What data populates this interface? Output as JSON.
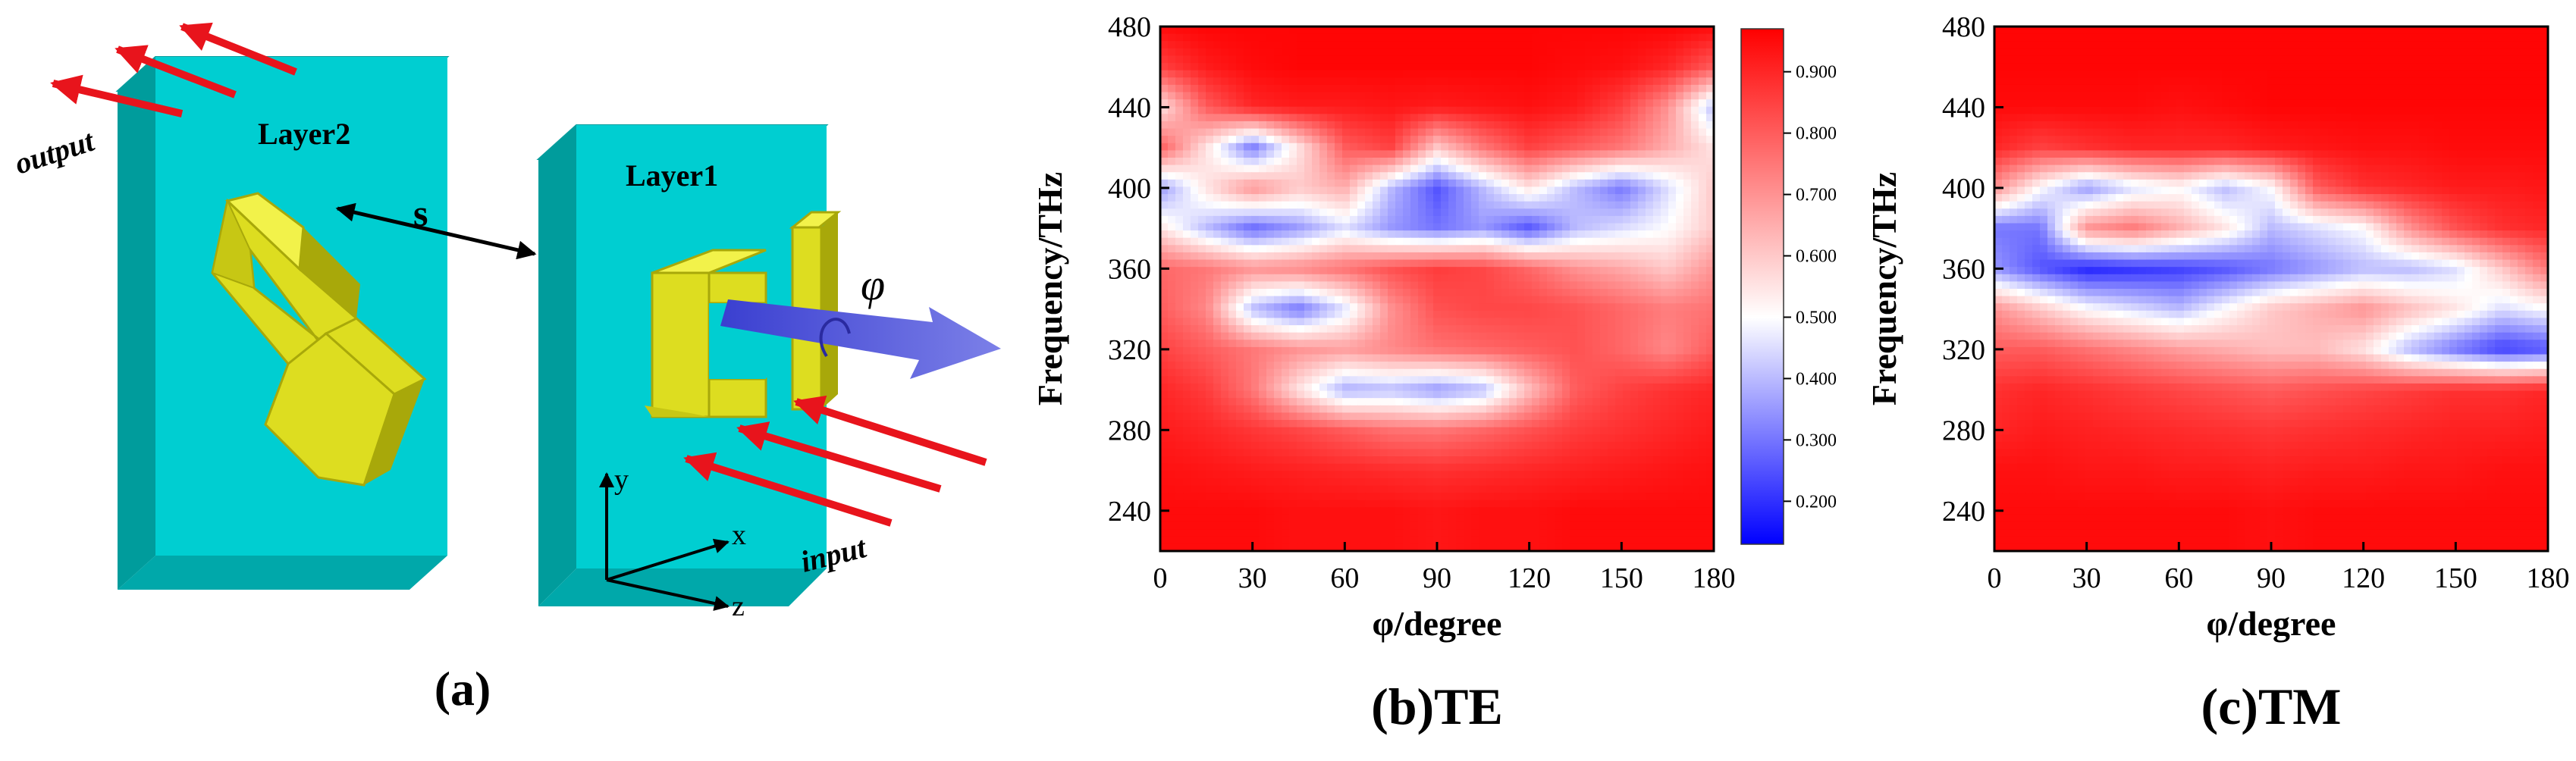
{
  "colors": {
    "slab_face": "#00CED1",
    "slab_top": "#1FD7D7",
    "slab_side": "#009C9C",
    "gold": "#DDDD20",
    "gold_top": "#F2F24A",
    "gold_side": "#A8A80A",
    "arrow_red": "#E8141C",
    "cmap_low": "#0000FF",
    "cmap_mid": "#FFFFFF",
    "cmap_high": "#FF0000"
  },
  "panel_a": {
    "label_layer2": "Layer2",
    "label_layer1": "Layer1",
    "label_output": "output",
    "label_input": "input",
    "label_s": "s",
    "label_phi": "φ",
    "axis_x": "x",
    "axis_y": "y",
    "axis_z": "z",
    "caption": "(a)"
  },
  "colorbar": {
    "ticks": [
      "0.900",
      "0.800",
      "0.700",
      "0.600",
      "0.500",
      "0.400",
      "0.300",
      "0.200"
    ],
    "tick_values": [
      0.9,
      0.8,
      0.7,
      0.6,
      0.5,
      0.4,
      0.3,
      0.2
    ],
    "range": [
      0.13,
      0.97
    ]
  },
  "chart_data": [
    {
      "type": "heatmap",
      "title": "(b)TE",
      "xlabel": "φ/degree",
      "ylabel": "Frequency/THz",
      "xlim": [
        0,
        180
      ],
      "ylim": [
        220,
        480
      ],
      "xticks": [
        "0",
        "30",
        "60",
        "90",
        "120",
        "150",
        "180"
      ],
      "yticks": [
        "240",
        "280",
        "320",
        "360",
        "400",
        "440",
        "480"
      ],
      "x": [
        0,
        15,
        30,
        45,
        60,
        75,
        90,
        105,
        120,
        135,
        150,
        165,
        180
      ],
      "y": [
        240,
        260,
        280,
        300,
        320,
        340,
        360,
        380,
        400,
        420,
        440,
        460,
        480
      ],
      "values": [
        [
          0.95,
          0.95,
          0.95,
          0.94,
          0.94,
          0.94,
          0.93,
          0.94,
          0.94,
          0.95,
          0.95,
          0.95,
          0.95
        ],
        [
          0.94,
          0.93,
          0.92,
          0.91,
          0.9,
          0.89,
          0.88,
          0.89,
          0.9,
          0.91,
          0.92,
          0.93,
          0.94
        ],
        [
          0.92,
          0.9,
          0.87,
          0.84,
          0.8,
          0.76,
          0.75,
          0.78,
          0.82,
          0.86,
          0.88,
          0.9,
          0.92
        ],
        [
          0.9,
          0.86,
          0.75,
          0.55,
          0.38,
          0.4,
          0.35,
          0.4,
          0.62,
          0.8,
          0.85,
          0.88,
          0.9
        ],
        [
          0.85,
          0.8,
          0.75,
          0.7,
          0.68,
          0.72,
          0.76,
          0.78,
          0.8,
          0.82,
          0.78,
          0.72,
          0.8
        ],
        [
          0.8,
          0.72,
          0.4,
          0.3,
          0.45,
          0.7,
          0.82,
          0.84,
          0.84,
          0.82,
          0.78,
          0.74,
          0.76
        ],
        [
          0.78,
          0.75,
          0.7,
          0.72,
          0.76,
          0.82,
          0.86,
          0.84,
          0.78,
          0.7,
          0.66,
          0.6,
          0.7
        ],
        [
          0.55,
          0.4,
          0.28,
          0.35,
          0.45,
          0.35,
          0.3,
          0.35,
          0.25,
          0.4,
          0.45,
          0.5,
          0.6
        ],
        [
          0.35,
          0.55,
          0.7,
          0.6,
          0.65,
          0.4,
          0.25,
          0.4,
          0.55,
          0.4,
          0.3,
          0.45,
          0.6
        ],
        [
          0.8,
          0.55,
          0.3,
          0.55,
          0.8,
          0.85,
          0.6,
          0.75,
          0.85,
          0.8,
          0.75,
          0.65,
          0.55
        ],
        [
          0.55,
          0.8,
          0.9,
          0.92,
          0.92,
          0.93,
          0.92,
          0.93,
          0.94,
          0.92,
          0.85,
          0.7,
          0.4
        ],
        [
          0.85,
          0.92,
          0.95,
          0.96,
          0.96,
          0.96,
          0.96,
          0.96,
          0.96,
          0.95,
          0.94,
          0.9,
          0.8
        ],
        [
          0.95,
          0.96,
          0.96,
          0.96,
          0.96,
          0.96,
          0.96,
          0.96,
          0.96,
          0.96,
          0.96,
          0.96,
          0.95
        ]
      ]
    },
    {
      "type": "heatmap",
      "title": "(c)TM",
      "xlabel": "φ/degree",
      "ylabel": "Frequency/THz",
      "xlim": [
        0,
        180
      ],
      "ylim": [
        220,
        480
      ],
      "xticks": [
        "0",
        "30",
        "60",
        "90",
        "120",
        "150",
        "180"
      ],
      "yticks": [
        "240",
        "280",
        "320",
        "360",
        "400",
        "440",
        "480"
      ],
      "x": [
        0,
        15,
        30,
        45,
        60,
        75,
        90,
        105,
        120,
        135,
        150,
        165,
        180
      ],
      "y": [
        240,
        260,
        280,
        300,
        320,
        340,
        360,
        380,
        400,
        420,
        440,
        460,
        480
      ],
      "values": [
        [
          0.95,
          0.95,
          0.95,
          0.95,
          0.95,
          0.95,
          0.94,
          0.95,
          0.95,
          0.95,
          0.95,
          0.95,
          0.95
        ],
        [
          0.94,
          0.94,
          0.93,
          0.93,
          0.92,
          0.92,
          0.91,
          0.92,
          0.92,
          0.93,
          0.93,
          0.94,
          0.94
        ],
        [
          0.9,
          0.92,
          0.91,
          0.9,
          0.89,
          0.88,
          0.87,
          0.88,
          0.89,
          0.9,
          0.91,
          0.91,
          0.92
        ],
        [
          0.88,
          0.9,
          0.88,
          0.86,
          0.84,
          0.82,
          0.8,
          0.82,
          0.84,
          0.86,
          0.88,
          0.88,
          0.9
        ],
        [
          0.8,
          0.8,
          0.76,
          0.72,
          0.68,
          0.65,
          0.62,
          0.62,
          0.55,
          0.4,
          0.3,
          0.22,
          0.25
        ],
        [
          0.7,
          0.6,
          0.5,
          0.45,
          0.4,
          0.5,
          0.6,
          0.65,
          0.7,
          0.62,
          0.55,
          0.45,
          0.5
        ],
        [
          0.35,
          0.25,
          0.18,
          0.2,
          0.22,
          0.25,
          0.3,
          0.35,
          0.4,
          0.4,
          0.45,
          0.6,
          0.75
        ],
        [
          0.3,
          0.3,
          0.7,
          0.75,
          0.65,
          0.55,
          0.4,
          0.45,
          0.5,
          0.7,
          0.82,
          0.88,
          0.9
        ],
        [
          0.7,
          0.5,
          0.35,
          0.45,
          0.5,
          0.4,
          0.5,
          0.8,
          0.88,
          0.9,
          0.92,
          0.92,
          0.93
        ],
        [
          0.9,
          0.85,
          0.88,
          0.9,
          0.9,
          0.9,
          0.92,
          0.93,
          0.94,
          0.94,
          0.95,
          0.95,
          0.95
        ],
        [
          0.95,
          0.95,
          0.95,
          0.95,
          0.94,
          0.95,
          0.96,
          0.96,
          0.96,
          0.96,
          0.96,
          0.96,
          0.96
        ],
        [
          0.96,
          0.96,
          0.96,
          0.96,
          0.96,
          0.96,
          0.96,
          0.96,
          0.96,
          0.96,
          0.96,
          0.96,
          0.96
        ],
        [
          0.96,
          0.96,
          0.96,
          0.96,
          0.96,
          0.96,
          0.96,
          0.96,
          0.96,
          0.96,
          0.96,
          0.96,
          0.96
        ]
      ]
    }
  ]
}
